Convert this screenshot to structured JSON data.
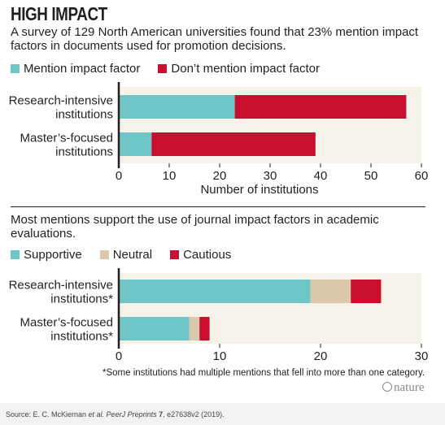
{
  "title": "HIGH IMPACT",
  "subtitle": "A survey of 129 North American universities found that 23% mention impact factors in documents used for promotion decisions.",
  "subtitle2": "Most mentions support the use of journal impact factors in academic evaluations.",
  "footnote": "*Some institutions had multiple mentions that fell into more than one category.",
  "logo": "nature",
  "source": {
    "prefix": "Source: E. C. McKiernan ",
    "italic": "et al. PeerJ Preprints",
    "bold": " 7",
    "suffix": ", e27638v2 (2019)."
  },
  "colors": {
    "teal": "#6ec6c6",
    "red": "#c8102e",
    "beige": "#dcc9ac",
    "plot_bg": "#f5f2ea"
  },
  "chart_data": [
    {
      "type": "bar",
      "orientation": "horizontal",
      "stacked": true,
      "categories": [
        [
          "Research-intensive",
          "institutions"
        ],
        [
          "Master’s-focused",
          "institutions"
        ]
      ],
      "series": [
        {
          "name": "Mention impact factor",
          "values": [
            23,
            6.5
          ],
          "color": "#6ec6c6"
        },
        {
          "name": "Don’t mention impact factor",
          "values": [
            34,
            32.5
          ],
          "color": "#c8102e"
        }
      ],
      "xlabel": "Number of institutions",
      "xlim": [
        0,
        60
      ],
      "xticks": [
        "0",
        "10",
        "20",
        "30",
        "40",
        "50",
        "60"
      ],
      "grid": false,
      "legend": "top-left"
    },
    {
      "type": "bar",
      "orientation": "horizontal",
      "stacked": true,
      "categories": [
        [
          "Research-intensive",
          "institutions*"
        ],
        [
          "Master’s-focused",
          "institutions*"
        ]
      ],
      "series": [
        {
          "name": "Supportive",
          "values": [
            19,
            7
          ],
          "color": "#6ec6c6"
        },
        {
          "name": "Neutral",
          "values": [
            4,
            1
          ],
          "color": "#dcc9ac"
        },
        {
          "name": "Cautious",
          "values": [
            3,
            1
          ],
          "color": "#c8102e"
        }
      ],
      "xlabel": "",
      "xlim": [
        0,
        30
      ],
      "xticks": [
        "0",
        "10",
        "20",
        "30"
      ],
      "grid": false,
      "legend": "top-left"
    }
  ]
}
